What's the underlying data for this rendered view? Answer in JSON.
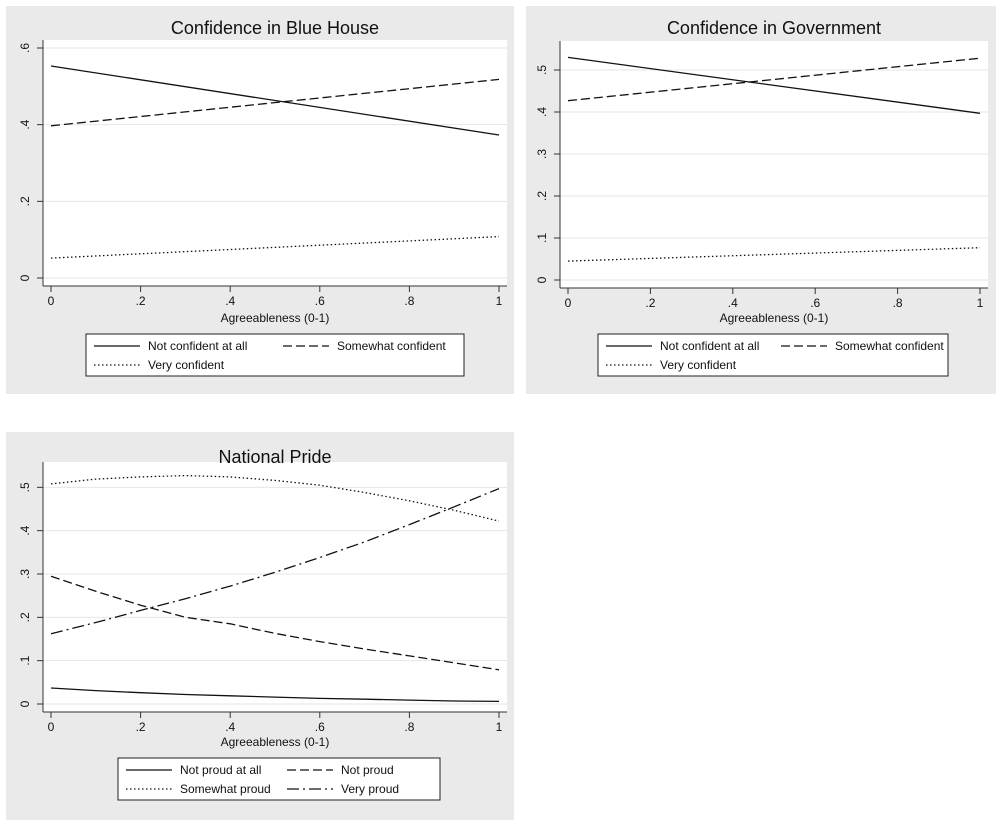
{
  "chart_data": [
    {
      "type": "line",
      "title": "Confidence in Blue House",
      "xlabel": "Agreeableness (0-1)",
      "ylabel": "",
      "xlim": [
        0,
        1
      ],
      "ylim": [
        0,
        0.6
      ],
      "xticks": [
        0,
        0.2,
        0.4,
        0.6,
        0.8,
        1
      ],
      "xtick_labels": [
        "0",
        ".2",
        ".4",
        ".6",
        ".8",
        "1"
      ],
      "yticks": [
        0,
        0.2,
        0.4,
        0.6
      ],
      "ytick_labels": [
        "0",
        ".2",
        ".4",
        ".6"
      ],
      "grid": true,
      "legend_position": "bottom",
      "legend_columns": 2,
      "series": [
        {
          "name": "Not confident at all",
          "style": "solid",
          "x": [
            0,
            1
          ],
          "y": [
            0.553,
            0.373
          ]
        },
        {
          "name": "Somewhat confident",
          "style": "dashed",
          "x": [
            0,
            1
          ],
          "y": [
            0.397,
            0.518
          ]
        },
        {
          "name": "Very confident",
          "style": "dotted",
          "x": [
            0,
            1
          ],
          "y": [
            0.052,
            0.108
          ]
        }
      ]
    },
    {
      "type": "line",
      "title": "Confidence in Government",
      "xlabel": "Agreeableness (0-1)",
      "ylabel": "",
      "xlim": [
        0,
        1
      ],
      "ylim": [
        0,
        0.55
      ],
      "xticks": [
        0,
        0.2,
        0.4,
        0.6,
        0.8,
        1
      ],
      "xtick_labels": [
        "0",
        ".2",
        ".4",
        ".6",
        ".8",
        "1"
      ],
      "yticks": [
        0,
        0.1,
        0.2,
        0.3,
        0.4,
        0.5
      ],
      "ytick_labels": [
        "0",
        ".1",
        ".2",
        ".3",
        ".4",
        ".5"
      ],
      "grid": true,
      "legend_position": "bottom",
      "legend_columns": 2,
      "series": [
        {
          "name": "Not confident at all",
          "style": "solid",
          "x": [
            0,
            1
          ],
          "y": [
            0.53,
            0.397
          ]
        },
        {
          "name": "Somewhat confident",
          "style": "dashed",
          "x": [
            0,
            1
          ],
          "y": [
            0.427,
            0.528
          ]
        },
        {
          "name": "Very confident",
          "style": "dotted",
          "x": [
            0,
            1
          ],
          "y": [
            0.045,
            0.077
          ]
        }
      ]
    },
    {
      "type": "line",
      "title": "National Pride",
      "xlabel": "Agreeableness (0-1)",
      "ylabel": "",
      "xlim": [
        0,
        1
      ],
      "ylim": [
        0,
        0.54
      ],
      "xticks": [
        0,
        0.2,
        0.4,
        0.6,
        0.8,
        1
      ],
      "xtick_labels": [
        "0",
        ".2",
        ".4",
        ".6",
        ".8",
        "1"
      ],
      "yticks": [
        0,
        0.1,
        0.2,
        0.3,
        0.4,
        0.5
      ],
      "ytick_labels": [
        "0",
        ".1",
        ".2",
        ".3",
        ".4",
        ".5"
      ],
      "grid": true,
      "legend_position": "bottom",
      "legend_columns": 2,
      "series": [
        {
          "name": "Not proud at all",
          "style": "solid",
          "x": [
            0,
            0.1,
            0.2,
            0.3,
            0.4,
            0.5,
            0.6,
            0.7,
            0.8,
            0.9,
            1
          ],
          "y": [
            0.037,
            0.031,
            0.026,
            0.022,
            0.019,
            0.016,
            0.013,
            0.011,
            0.009,
            0.007,
            0.006
          ]
        },
        {
          "name": "Not proud",
          "style": "dashed",
          "x": [
            0,
            0.1,
            0.2,
            0.3,
            0.4,
            0.5,
            0.6,
            0.7,
            0.8,
            0.9,
            1
          ],
          "y": [
            0.295,
            0.26,
            0.228,
            0.2,
            0.185,
            0.163,
            0.144,
            0.127,
            0.111,
            0.095,
            0.079
          ]
        },
        {
          "name": "Somewhat proud",
          "style": "dotted",
          "x": [
            0,
            0.1,
            0.2,
            0.3,
            0.4,
            0.5,
            0.6,
            0.7,
            0.8,
            0.9,
            1
          ],
          "y": [
            0.508,
            0.519,
            0.524,
            0.527,
            0.524,
            0.516,
            0.505,
            0.488,
            0.469,
            0.447,
            0.422
          ]
        },
        {
          "name": "Very proud",
          "style": "dashdot",
          "x": [
            0,
            0.1,
            0.2,
            0.3,
            0.4,
            0.5,
            0.6,
            0.7,
            0.8,
            0.9,
            1
          ],
          "y": [
            0.162,
            0.188,
            0.216,
            0.243,
            0.272,
            0.304,
            0.338,
            0.374,
            0.414,
            0.455,
            0.497
          ]
        }
      ]
    }
  ]
}
